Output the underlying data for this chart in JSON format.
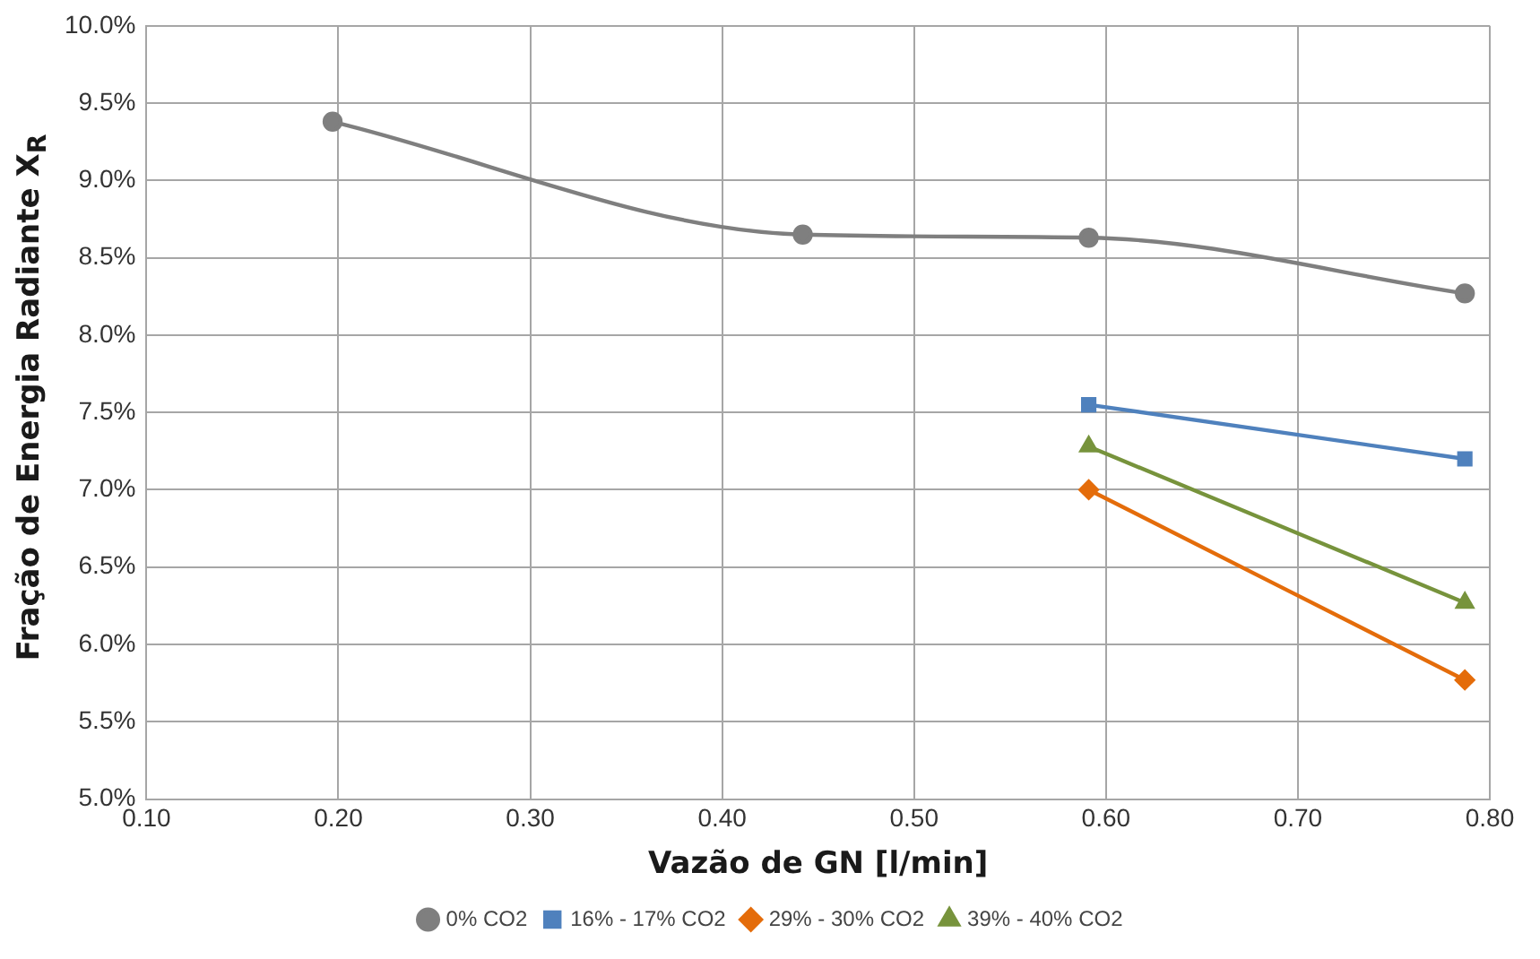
{
  "chart_data": {
    "type": "line",
    "xlabel": "Vazão de GN [l/min]",
    "ylabel": "Fração de Energia Radiante X$_{R}$",
    "xlim": [
      0.1,
      0.8
    ],
    "xticks": [
      {
        "value": 0.1,
        "label": "0.10"
      },
      {
        "value": 0.2,
        "label": "0.20"
      },
      {
        "value": 0.3,
        "label": "0.30"
      },
      {
        "value": 0.4,
        "label": "0.40"
      },
      {
        "value": 0.5,
        "label": "0.50"
      },
      {
        "value": 0.6,
        "label": "0.60"
      },
      {
        "value": 0.7,
        "label": "0.70"
      },
      {
        "value": 0.8,
        "label": "0.80"
      }
    ],
    "ylim": [
      5,
      10
    ],
    "yticks": [
      {
        "value": 5,
        "label": "5.0%"
      },
      {
        "value": 5.5,
        "label": "5.5%"
      },
      {
        "value": 6,
        "label": "6.0%"
      },
      {
        "value": 6.5,
        "label": "6.5%"
      },
      {
        "value": 7,
        "label": "7.0%"
      },
      {
        "value": 7.5,
        "label": "7.5%"
      },
      {
        "value": 8,
        "label": "8.0%"
      },
      {
        "value": 8.5,
        "label": "8.5%"
      },
      {
        "value": 9,
        "label": "9.0%"
      },
      {
        "value": 9.5,
        "label": "9.5%"
      },
      {
        "value": 10,
        "label": "10.0%"
      }
    ],
    "grid": true,
    "legend": "bottom",
    "line_style": "solid",
    "series": [
      {
        "name": "0% CO2",
        "color": "#7f7f7f",
        "marker": "circle",
        "x": [
          0.197,
          0.442,
          0.591,
          0.787
        ],
        "values": [
          9.38,
          8.65,
          8.63,
          8.27
        ]
      },
      {
        "name": "16% - 17% CO2",
        "color": "#4f81bd",
        "marker": "square",
        "x": [
          0.591,
          0.787
        ],
        "values": [
          7.55,
          7.2
        ]
      },
      {
        "name": "29% - 30% CO2",
        "color": "#e46c0a",
        "marker": "diamond",
        "x": [
          0.591,
          0.787
        ],
        "values": [
          7.0,
          5.77
        ]
      },
      {
        "name": "39% - 40% CO2",
        "color": "#77933c",
        "marker": "triangle",
        "x": [
          0.591,
          0.787
        ],
        "values": [
          7.28,
          6.27
        ]
      }
    ]
  }
}
